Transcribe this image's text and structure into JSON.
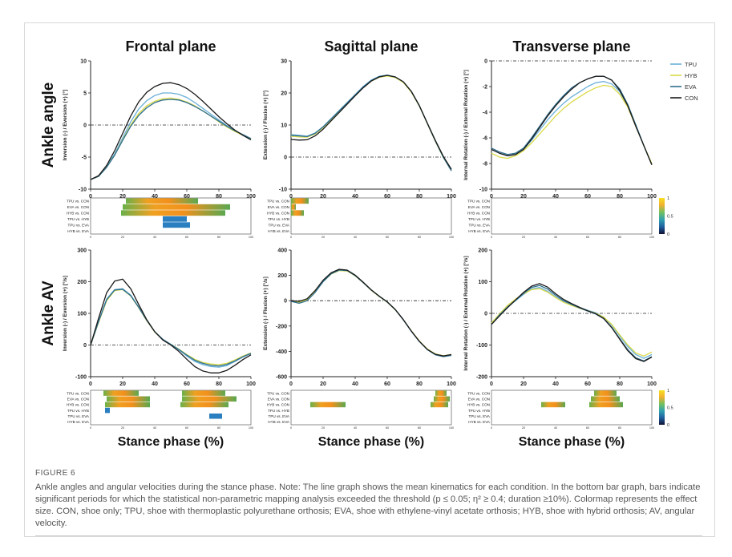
{
  "figure_label": "FIGURE 6",
  "caption": "Ankle angles and angular velocities during the stance phase. Note: The line graph shows the mean kinematics for each condition. In the bottom bar graph, bars indicate significant periods for which the statistical non-parametric mapping analysis exceeded the threshold (p ≤ 0.05; η² ≥ 0.4; duration ≥10%). Colormap represents the effect size. CON, shoe only; TPU, shoe with thermoplastic polyurethane orthosis; EVA, shoe with ethylene-vinyl acetate orthosis; HYB, shoe with hybrid orthosis; AV, angular velocity.",
  "column_titles": [
    "Frontal plane",
    "Sagittal plane",
    "Transverse plane"
  ],
  "row_titles": [
    "Ankle angle",
    "Ankle AV"
  ],
  "xlabel": "Stance phase (%)",
  "legend": [
    {
      "name": "TPU",
      "color": "#6ab0d8"
    },
    {
      "name": "HYB",
      "color": "#d9d94a"
    },
    {
      "name": "EVA",
      "color": "#2e6f8e"
    },
    {
      "name": "CON",
      "color": "#1a1a1a"
    }
  ],
  "colorbar": {
    "ticks": [
      "1",
      "0.5",
      "0"
    ]
  },
  "chart_data": [
    {
      "type": "line",
      "id": "frontal-angle",
      "ylabel": "Inversion (-) / Eversion (+) [°]",
      "xlim": [
        0,
        100
      ],
      "ylim": [
        -10,
        10
      ],
      "yticks": [
        -10,
        -5,
        0,
        5,
        10
      ],
      "xticks": [
        0,
        20,
        40,
        60,
        80,
        100
      ],
      "x": [
        0,
        5,
        10,
        15,
        20,
        25,
        30,
        35,
        40,
        45,
        50,
        55,
        60,
        65,
        70,
        75,
        80,
        85,
        90,
        95,
        100
      ],
      "series": [
        {
          "name": "TPU",
          "values": [
            -8.5,
            -8.0,
            -6.5,
            -4.5,
            -2.0,
            0.5,
            2.5,
            3.8,
            4.6,
            5.0,
            5.0,
            4.8,
            4.3,
            3.5,
            2.6,
            1.7,
            0.8,
            -0.1,
            -0.9,
            -1.6,
            -2.3
          ]
        },
        {
          "name": "HYB",
          "values": [
            -8.5,
            -8.0,
            -6.6,
            -4.7,
            -2.3,
            0.0,
            1.8,
            3.0,
            3.7,
            4.1,
            4.2,
            4.0,
            3.6,
            3.0,
            2.2,
            1.4,
            0.5,
            -0.3,
            -1.0,
            -1.6,
            -2.2
          ]
        },
        {
          "name": "EVA",
          "values": [
            -8.5,
            -8.0,
            -6.6,
            -4.7,
            -2.4,
            -0.2,
            1.5,
            2.7,
            3.5,
            3.9,
            4.0,
            3.9,
            3.5,
            2.9,
            2.2,
            1.4,
            0.6,
            -0.2,
            -0.9,
            -1.5,
            -2.1
          ]
        },
        {
          "name": "CON",
          "values": [
            -8.5,
            -7.9,
            -6.3,
            -4.0,
            -1.3,
            1.4,
            3.6,
            5.1,
            6.0,
            6.5,
            6.6,
            6.3,
            5.7,
            4.8,
            3.7,
            2.5,
            1.3,
            0.2,
            -0.8,
            -1.6,
            -2.3
          ]
        }
      ],
      "spm": {
        "rows": [
          "TPU vs. CON",
          "EVA vs. CON",
          "HYB vs. CON",
          "TPU vs. HYB",
          "TPU vs. EVA",
          "HYB vs. EVA"
        ],
        "bars": [
          {
            "row": 0,
            "start": 22,
            "end": 67
          },
          {
            "row": 1,
            "start": 20,
            "end": 87
          },
          {
            "row": 2,
            "start": 19,
            "end": 84
          },
          {
            "row": 3,
            "start": 45,
            "end": 60
          },
          {
            "row": 4,
            "start": 45,
            "end": 62
          }
        ]
      }
    },
    {
      "type": "line",
      "id": "sagittal-angle",
      "ylabel": "Extension (-) / Flexion (+) [°]",
      "xlim": [
        0,
        100
      ],
      "ylim": [
        -10,
        30
      ],
      "yticks": [
        -10,
        0,
        10,
        20,
        30
      ],
      "xticks": [
        0,
        20,
        40,
        60,
        80,
        100
      ],
      "x": [
        0,
        5,
        10,
        15,
        20,
        25,
        30,
        35,
        40,
        45,
        50,
        55,
        60,
        65,
        70,
        75,
        80,
        85,
        90,
        95,
        100
      ],
      "series": [
        {
          "name": "TPU",
          "values": [
            7.0,
            6.8,
            6.5,
            7.5,
            9.5,
            12.0,
            14.5,
            17.0,
            19.5,
            22.0,
            24.0,
            25.2,
            25.6,
            25.0,
            23.5,
            20.5,
            16.0,
            10.5,
            5.0,
            0.0,
            -4.0
          ]
        },
        {
          "name": "HYB",
          "values": [
            6.5,
            6.3,
            6.2,
            7.2,
            9.2,
            11.7,
            14.2,
            16.7,
            19.2,
            21.7,
            23.7,
            24.9,
            25.3,
            24.8,
            23.3,
            20.3,
            15.9,
            10.4,
            4.9,
            -0.1,
            -4.2
          ]
        },
        {
          "name": "EVA",
          "values": [
            6.8,
            6.6,
            6.4,
            7.4,
            9.4,
            11.9,
            14.4,
            16.9,
            19.4,
            21.9,
            23.9,
            25.1,
            25.5,
            25.0,
            23.5,
            20.5,
            16.0,
            10.5,
            5.0,
            -0.1,
            -4.3
          ]
        },
        {
          "name": "CON",
          "values": [
            5.5,
            5.3,
            5.4,
            6.6,
            8.7,
            11.3,
            13.9,
            16.5,
            19.1,
            21.6,
            23.7,
            25.0,
            25.5,
            25.0,
            23.5,
            20.5,
            16.1,
            10.6,
            5.2,
            0.2,
            -3.8
          ]
        }
      ],
      "spm": {
        "rows": [
          "TPU vs. CON",
          "EVA vs. CON",
          "HYB vs. CON",
          "TPU vs. HYB",
          "TPU vs. EVA",
          "HYB vs. EVA"
        ],
        "bars": [
          {
            "row": 0,
            "start": 0,
            "end": 11
          },
          {
            "row": 1,
            "start": 0,
            "end": 3
          },
          {
            "row": 2,
            "start": 0,
            "end": 8
          }
        ]
      }
    },
    {
      "type": "line",
      "id": "transverse-angle",
      "ylabel": "Internal Rotation (-) / External Rotation (+) [°]",
      "xlim": [
        0,
        100
      ],
      "ylim": [
        -10,
        0
      ],
      "yticks": [
        -10,
        -8,
        -6,
        -4,
        -2,
        0
      ],
      "xticks": [
        0,
        20,
        40,
        60,
        80,
        100
      ],
      "x": [
        0,
        5,
        10,
        15,
        20,
        25,
        30,
        35,
        40,
        45,
        50,
        55,
        60,
        65,
        70,
        75,
        80,
        85,
        90,
        95,
        100
      ],
      "series": [
        {
          "name": "TPU",
          "values": [
            -6.9,
            -7.2,
            -7.4,
            -7.3,
            -6.9,
            -6.2,
            -5.4,
            -4.6,
            -3.9,
            -3.3,
            -2.8,
            -2.4,
            -2.0,
            -1.7,
            -1.6,
            -1.8,
            -2.4,
            -3.5,
            -5.0,
            -6.6,
            -8.1
          ]
        },
        {
          "name": "HYB",
          "values": [
            -7.2,
            -7.5,
            -7.6,
            -7.4,
            -7.0,
            -6.4,
            -5.7,
            -5.0,
            -4.3,
            -3.7,
            -3.2,
            -2.8,
            -2.4,
            -2.1,
            -1.9,
            -2.0,
            -2.6,
            -3.6,
            -5.1,
            -6.6,
            -8.0
          ]
        },
        {
          "name": "EVA",
          "values": [
            -6.8,
            -7.1,
            -7.3,
            -7.2,
            -6.8,
            -6.0,
            -5.1,
            -4.2,
            -3.4,
            -2.7,
            -2.1,
            -1.7,
            -1.4,
            -1.2,
            -1.2,
            -1.5,
            -2.2,
            -3.4,
            -5.0,
            -6.6,
            -8.1
          ]
        },
        {
          "name": "CON",
          "values": [
            -6.9,
            -7.2,
            -7.4,
            -7.3,
            -6.9,
            -6.1,
            -5.2,
            -4.3,
            -3.5,
            -2.8,
            -2.2,
            -1.7,
            -1.4,
            -1.2,
            -1.2,
            -1.5,
            -2.3,
            -3.5,
            -5.1,
            -6.6,
            -8.1
          ]
        }
      ],
      "spm": {
        "rows": [
          "TPU vs. CON",
          "EVA vs. CON",
          "HYB vs. CON",
          "TPU vs. HYB",
          "TPU vs. EVA",
          "HYB vs. EVA"
        ],
        "bars": []
      }
    },
    {
      "type": "line",
      "id": "frontal-av",
      "ylabel": "Inversion (-) / Eversion (+) [°/s]",
      "xlim": [
        0,
        100
      ],
      "ylim": [
        -100,
        300
      ],
      "yticks": [
        -100,
        0,
        100,
        200,
        300
      ],
      "xticks": [
        0,
        20,
        40,
        60,
        80,
        100
      ],
      "x": [
        0,
        5,
        10,
        15,
        20,
        25,
        30,
        35,
        40,
        45,
        50,
        55,
        60,
        65,
        70,
        75,
        80,
        85,
        90,
        95,
        100
      ],
      "series": [
        {
          "name": "TPU",
          "values": [
            0,
            75,
            145,
            175,
            178,
            158,
            120,
            78,
            42,
            18,
            2,
            -15,
            -35,
            -52,
            -62,
            -68,
            -70,
            -65,
            -52,
            -38,
            -27
          ]
        },
        {
          "name": "HYB",
          "values": [
            0,
            72,
            140,
            172,
            175,
            155,
            118,
            77,
            41,
            17,
            2,
            -13,
            -30,
            -45,
            -55,
            -60,
            -62,
            -58,
            -47,
            -35,
            -25
          ]
        },
        {
          "name": "EVA",
          "values": [
            0,
            74,
            143,
            174,
            176,
            156,
            119,
            78,
            42,
            18,
            2,
            -14,
            -32,
            -48,
            -58,
            -64,
            -66,
            -61,
            -50,
            -37,
            -26
          ]
        },
        {
          "name": "CON",
          "values": [
            0,
            85,
            165,
            202,
            208,
            178,
            128,
            80,
            42,
            16,
            0,
            -20,
            -45,
            -68,
            -82,
            -88,
            -88,
            -80,
            -64,
            -46,
            -31
          ]
        }
      ],
      "spm": {
        "rows": [
          "TPU vs. CON",
          "EVA vs. CON",
          "HYB vs. CON",
          "TPU vs. HYB",
          "TPU vs. EVA",
          "HYB vs. EVA"
        ],
        "bars": [
          {
            "row": 0,
            "start": 8,
            "end": 30
          },
          {
            "row": 0,
            "start": 57,
            "end": 84
          },
          {
            "row": 1,
            "start": 10,
            "end": 37
          },
          {
            "row": 1,
            "start": 57,
            "end": 91
          },
          {
            "row": 2,
            "start": 9,
            "end": 37
          },
          {
            "row": 2,
            "start": 56,
            "end": 86
          },
          {
            "row": 3,
            "start": 9,
            "end": 12
          },
          {
            "row": 4,
            "start": 74,
            "end": 82
          }
        ]
      }
    },
    {
      "type": "line",
      "id": "sagittal-av",
      "ylabel": "Extension (-) / Flexion (+) [°/s]",
      "xlim": [
        0,
        100
      ],
      "ylim": [
        -600,
        400
      ],
      "yticks": [
        -600,
        -400,
        -200,
        0,
        200,
        400
      ],
      "xticks": [
        0,
        20,
        40,
        60,
        80,
        100
      ],
      "x": [
        0,
        5,
        10,
        15,
        20,
        25,
        30,
        35,
        40,
        45,
        50,
        55,
        60,
        65,
        70,
        75,
        80,
        85,
        90,
        95,
        100
      ],
      "series": [
        {
          "name": "TPU",
          "values": [
            -5,
            -15,
            5,
            70,
            155,
            215,
            245,
            240,
            200,
            145,
            85,
            35,
            -10,
            -70,
            -150,
            -240,
            -320,
            -385,
            -425,
            -440,
            -430
          ]
        },
        {
          "name": "HYB",
          "values": [
            -5,
            -12,
            8,
            72,
            152,
            210,
            238,
            234,
            196,
            142,
            82,
            32,
            -12,
            -72,
            -150,
            -238,
            -318,
            -382,
            -420,
            -435,
            -425
          ]
        },
        {
          "name": "EVA",
          "values": [
            -5,
            -20,
            0,
            65,
            150,
            212,
            242,
            238,
            198,
            143,
            84,
            34,
            -11,
            -71,
            -151,
            -241,
            -322,
            -387,
            -427,
            -442,
            -432
          ]
        },
        {
          "name": "CON",
          "values": [
            0,
            -5,
            15,
            80,
            162,
            220,
            248,
            242,
            202,
            146,
            86,
            36,
            -9,
            -69,
            -149,
            -239,
            -320,
            -384,
            -423,
            -436,
            -425
          ]
        }
      ],
      "spm": {
        "rows": [
          "TPU vs. CON",
          "EVA vs. CON",
          "HYB vs. CON",
          "TPU vs. HYB",
          "TPU vs. EVA",
          "HYB vs. EVA"
        ],
        "bars": [
          {
            "row": 0,
            "start": 90,
            "end": 97
          },
          {
            "row": 1,
            "start": 89,
            "end": 99
          },
          {
            "row": 2,
            "start": 12,
            "end": 34
          },
          {
            "row": 2,
            "start": 87,
            "end": 98
          }
        ]
      }
    },
    {
      "type": "line",
      "id": "transverse-av",
      "ylabel": "Internal Rotation (-) / External Rotation (+) [°/s]",
      "xlim": [
        0,
        100
      ],
      "ylim": [
        -200,
        200
      ],
      "yticks": [
        -200,
        -100,
        0,
        100,
        200
      ],
      "xticks": [
        0,
        20,
        40,
        60,
        80,
        100
      ],
      "x": [
        0,
        5,
        10,
        15,
        20,
        25,
        30,
        35,
        40,
        45,
        50,
        55,
        60,
        65,
        70,
        75,
        80,
        85,
        90,
        95,
        100
      ],
      "series": [
        {
          "name": "TPU",
          "values": [
            -35,
            -5,
            20,
            40,
            60,
            77,
            82,
            70,
            52,
            37,
            27,
            18,
            10,
            2,
            -12,
            -38,
            -72,
            -105,
            -130,
            -142,
            -130
          ]
        },
        {
          "name": "HYB",
          "values": [
            -30,
            -2,
            25,
            45,
            62,
            75,
            78,
            67,
            50,
            35,
            25,
            16,
            8,
            0,
            -12,
            -35,
            -68,
            -100,
            -125,
            -135,
            -122
          ]
        },
        {
          "name": "EVA",
          "values": [
            -35,
            -5,
            20,
            42,
            63,
            82,
            88,
            77,
            57,
            40,
            28,
            17,
            7,
            -2,
            -17,
            -45,
            -80,
            -115,
            -140,
            -150,
            -137
          ]
        },
        {
          "name": "CON",
          "values": [
            -35,
            -8,
            18,
            42,
            66,
            86,
            94,
            83,
            62,
            44,
            31,
            19,
            8,
            -1,
            -16,
            -45,
            -82,
            -118,
            -143,
            -152,
            -138
          ]
        }
      ],
      "spm": {
        "rows": [
          "TPU vs. CON",
          "EVA vs. CON",
          "HYB vs. CON",
          "TPU vs. HYB",
          "TPU vs. EVA",
          "HYB vs. EVA"
        ],
        "bars": [
          {
            "row": 0,
            "start": 64,
            "end": 78
          },
          {
            "row": 1,
            "start": 62,
            "end": 80
          },
          {
            "row": 2,
            "start": 31,
            "end": 46
          },
          {
            "row": 2,
            "start": 61,
            "end": 82
          }
        ]
      }
    }
  ]
}
